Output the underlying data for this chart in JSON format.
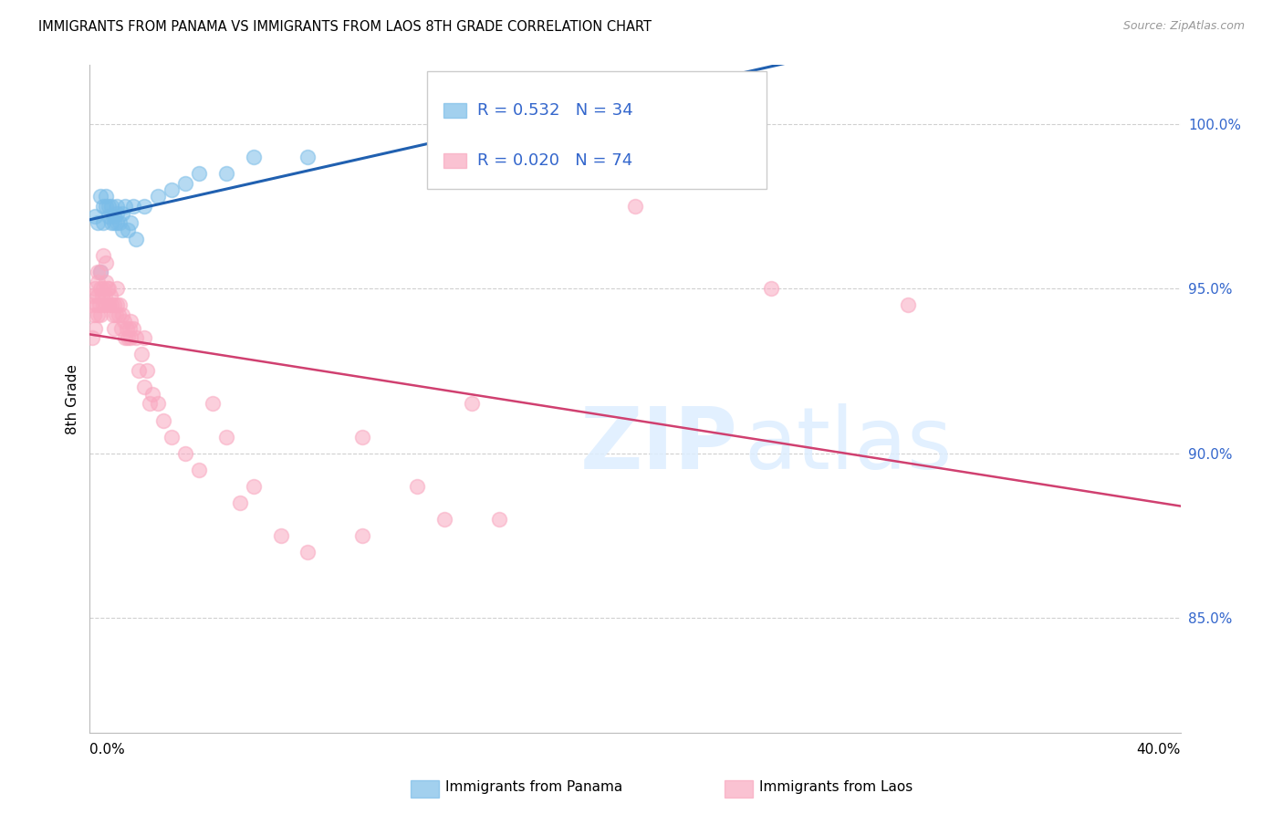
{
  "title": "IMMIGRANTS FROM PANAMA VS IMMIGRANTS FROM LAOS 8TH GRADE CORRELATION CHART",
  "source": "Source: ZipAtlas.com",
  "ylabel": "8th Grade",
  "xmin": 0.0,
  "xmax": 40.0,
  "ymin": 81.5,
  "ymax": 101.8,
  "yticks": [
    85.0,
    90.0,
    95.0,
    100.0
  ],
  "legend_text_blue": "R = 0.532   N = 34",
  "legend_text_pink": "R = 0.020   N = 74",
  "label_blue": "Immigrants from Panama",
  "label_pink": "Immigrants from Laos",
  "blue_color": "#7bbde8",
  "pink_color": "#f9a8c0",
  "trend_blue": "#2060b0",
  "trend_pink": "#d04070",
  "legend_color": "#3366cc",
  "blue_x": [
    0.2,
    0.3,
    0.4,
    0.5,
    0.5,
    0.6,
    0.6,
    0.7,
    0.7,
    0.8,
    0.8,
    0.9,
    0.9,
    1.0,
    1.0,
    1.0,
    1.1,
    1.2,
    1.2,
    1.3,
    1.4,
    1.5,
    1.6,
    1.7,
    2.0,
    2.5,
    3.0,
    3.5,
    4.0,
    5.0,
    6.0,
    8.0,
    20.0,
    0.4
  ],
  "blue_y": [
    97.2,
    97.0,
    97.8,
    97.5,
    97.0,
    97.8,
    97.5,
    97.5,
    97.2,
    97.5,
    97.0,
    97.2,
    97.0,
    97.5,
    97.3,
    97.0,
    97.0,
    97.3,
    96.8,
    97.5,
    96.8,
    97.0,
    97.5,
    96.5,
    97.5,
    97.8,
    98.0,
    98.2,
    98.5,
    98.5,
    99.0,
    99.0,
    100.2,
    95.5
  ],
  "pink_x": [
    0.05,
    0.1,
    0.1,
    0.15,
    0.2,
    0.2,
    0.25,
    0.3,
    0.3,
    0.3,
    0.35,
    0.4,
    0.4,
    0.45,
    0.5,
    0.5,
    0.55,
    0.6,
    0.6,
    0.65,
    0.7,
    0.7,
    0.75,
    0.8,
    0.85,
    0.9,
    0.9,
    0.95,
    1.0,
    1.0,
    1.05,
    1.1,
    1.15,
    1.2,
    1.25,
    1.3,
    1.35,
    1.4,
    1.45,
    1.5,
    1.5,
    1.6,
    1.7,
    1.8,
    1.9,
    2.0,
    2.0,
    2.1,
    2.2,
    2.3,
    2.5,
    2.7,
    3.0,
    3.5,
    4.0,
    4.5,
    5.0,
    5.5,
    6.0,
    7.0,
    8.0,
    10.0,
    10.0,
    12.0,
    13.0,
    14.0,
    15.0,
    20.0,
    25.0,
    30.0,
    0.3,
    0.4,
    0.5,
    0.6
  ],
  "pink_y": [
    94.5,
    94.8,
    93.5,
    94.2,
    95.0,
    93.8,
    94.5,
    95.2,
    94.8,
    94.2,
    94.5,
    95.0,
    94.2,
    94.8,
    95.0,
    94.5,
    94.8,
    95.2,
    94.5,
    95.0,
    95.0,
    94.5,
    94.8,
    94.5,
    94.2,
    94.5,
    93.8,
    94.2,
    95.0,
    94.5,
    94.2,
    94.5,
    93.8,
    94.2,
    94.0,
    93.5,
    93.8,
    93.5,
    93.8,
    94.0,
    93.5,
    93.8,
    93.5,
    92.5,
    93.0,
    93.5,
    92.0,
    92.5,
    91.5,
    91.8,
    91.5,
    91.0,
    90.5,
    90.0,
    89.5,
    91.5,
    90.5,
    88.5,
    89.0,
    87.5,
    87.0,
    90.5,
    87.5,
    89.0,
    88.0,
    91.5,
    88.0,
    97.5,
    95.0,
    94.5,
    95.5,
    95.5,
    96.0,
    95.8
  ]
}
